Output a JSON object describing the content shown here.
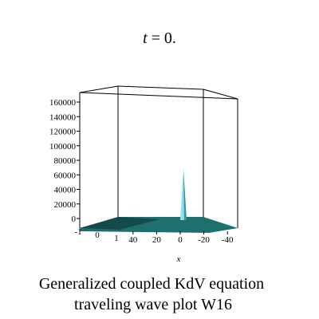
{
  "chart_data": {
    "type": "surface3d",
    "title": "t = 0.",
    "title_var": "t",
    "title_rest": " = 0.",
    "xlabel": "x",
    "ylabel": "",
    "zlabel": "",
    "z_ticks": [
      "0",
      "20000",
      "40000",
      "60000",
      "80000",
      "100000",
      "120000",
      "140000",
      "160000"
    ],
    "z_tick_values": [
      0,
      20000,
      40000,
      60000,
      80000,
      100000,
      120000,
      140000,
      160000
    ],
    "zlim": [
      0,
      170000
    ],
    "x_ticks": [
      "40",
      "20",
      "0",
      "-20",
      "-40"
    ],
    "x_tick_values": [
      40,
      20,
      0,
      -20,
      -40
    ],
    "xlim": [
      50,
      -50
    ],
    "y_ticks": [
      "-1",
      "0",
      "1"
    ],
    "y_tick_values": [
      -1,
      0,
      1
    ],
    "ylim": [
      -1,
      1
    ],
    "peak": {
      "x": 0,
      "y": 0,
      "z": 62000
    },
    "surface_color": "#1f6f6f",
    "peak_color": "#8fe0ea",
    "caption_line1": "Generalized coupled KdV equation",
    "caption_line2": "traveling wave plot W16"
  }
}
